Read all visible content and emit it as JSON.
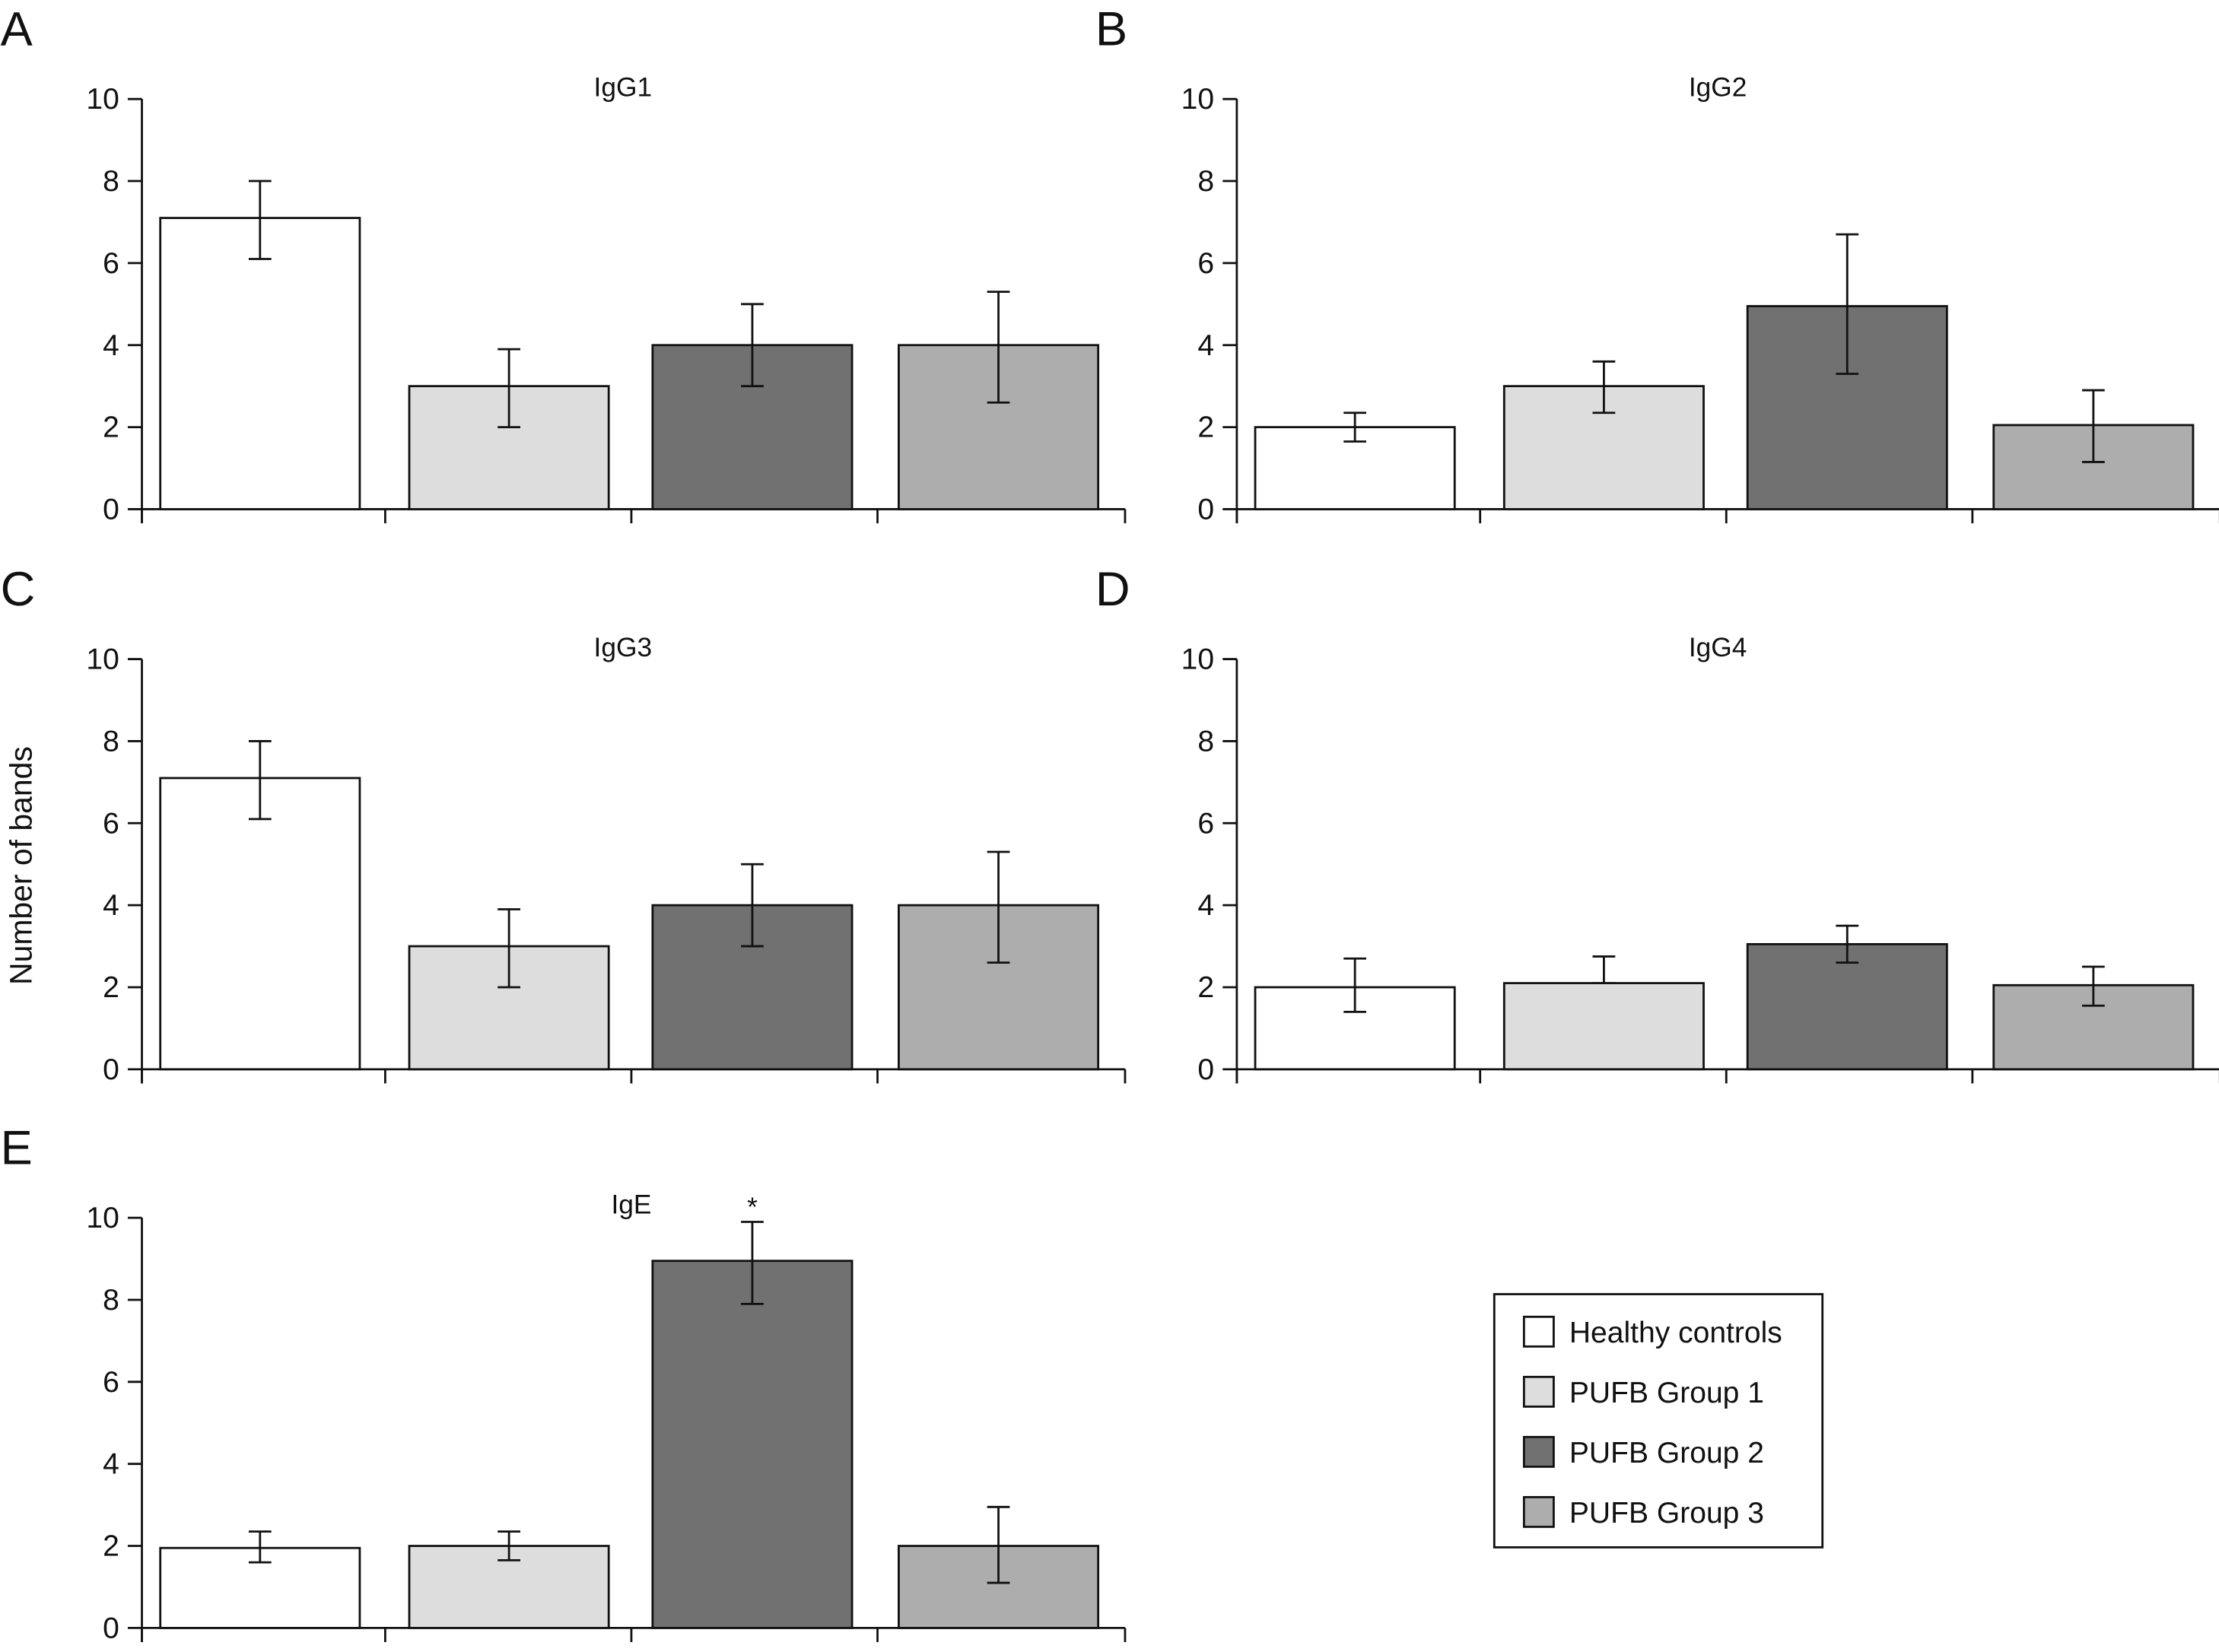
{
  "chart_data": [
    {
      "type": "bar",
      "panel": "A",
      "title": "IgG1",
      "categories": [
        "Healthy controls",
        "PUFB Group 1",
        "PUFB Group 2",
        "PUFB Group 3"
      ],
      "values": [
        7.1,
        3.0,
        4.0,
        4.0
      ],
      "error_low": [
        6.1,
        2.0,
        3.0,
        2.6
      ],
      "error_high": [
        8.0,
        3.9,
        5.0,
        5.3
      ],
      "ylim": [
        0,
        10
      ],
      "yticks": [
        "0",
        "2",
        "4",
        "6",
        "8",
        "10"
      ],
      "annotations": []
    },
    {
      "type": "bar",
      "panel": "B",
      "title": "IgG2",
      "categories": [
        "Healthy controls",
        "PUFB Group 1",
        "PUFB Group 2",
        "PUFB Group 3"
      ],
      "values": [
        2.0,
        3.0,
        4.95,
        2.05
      ],
      "error_low": [
        1.65,
        2.35,
        3.3,
        1.15
      ],
      "error_high": [
        2.35,
        3.6,
        6.7,
        2.9
      ],
      "ylim": [
        0,
        10
      ],
      "yticks": [
        "0",
        "2",
        "4",
        "6",
        "8",
        "10"
      ],
      "annotations": []
    },
    {
      "type": "bar",
      "panel": "C",
      "title": "IgG3",
      "categories": [
        "Healthy controls",
        "PUFB Group 1",
        "PUFB Group 2",
        "PUFB Group 3"
      ],
      "values": [
        7.1,
        3.0,
        4.0,
        4.0
      ],
      "error_low": [
        6.1,
        2.0,
        3.0,
        2.6
      ],
      "error_high": [
        8.0,
        3.9,
        5.0,
        5.3
      ],
      "ylim": [
        0,
        10
      ],
      "yticks": [
        "0",
        "2",
        "4",
        "6",
        "8",
        "10"
      ],
      "annotations": []
    },
    {
      "type": "bar",
      "panel": "D",
      "title": "IgG4",
      "categories": [
        "Healthy controls",
        "PUFB Group 1",
        "PUFB Group 2",
        "PUFB Group 3"
      ],
      "values": [
        2.0,
        2.1,
        3.05,
        2.05
      ],
      "error_low": [
        1.4,
        2.1,
        2.6,
        1.55
      ],
      "error_high": [
        2.7,
        2.75,
        3.5,
        2.5
      ],
      "ylim": [
        0,
        10
      ],
      "yticks": [
        "0",
        "2",
        "4",
        "6",
        "8",
        "10"
      ],
      "annotations": []
    },
    {
      "type": "bar",
      "panel": "E",
      "title": "IgE",
      "categories": [
        "Healthy controls",
        "PUFB Group 1",
        "PUFB Group 2",
        "PUFB Group 3"
      ],
      "values": [
        1.95,
        2.0,
        8.95,
        2.0
      ],
      "error_low": [
        1.6,
        1.65,
        7.9,
        1.1
      ],
      "error_high": [
        2.35,
        2.35,
        9.9,
        2.95
      ],
      "ylim": [
        0,
        10
      ],
      "yticks": [
        "0",
        "2",
        "4",
        "6",
        "8",
        "10"
      ],
      "annotations": [
        {
          "bar": 2,
          "text": "*"
        }
      ]
    }
  ],
  "ylabel": "Number of bands",
  "legend": {
    "placement": "bottom-right",
    "entries": [
      {
        "label": "Healthy controls",
        "color": "#ffffff"
      },
      {
        "label": "PUFB Group 1",
        "color": "#dddddd"
      },
      {
        "label": "PUFB Group 2",
        "color": "#717171"
      },
      {
        "label": "PUFB Group 3",
        "color": "#adadad"
      }
    ]
  }
}
